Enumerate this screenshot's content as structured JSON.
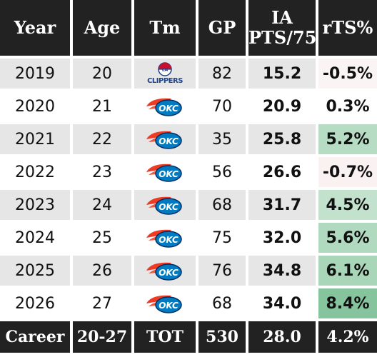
{
  "columns": {
    "year": "Year",
    "age": "Age",
    "team": "Tm",
    "gp": "GP",
    "pts_line1": "IA",
    "pts_line2": "PTS/75",
    "rts": "rTS%"
  },
  "rows": [
    {
      "year": "2019",
      "age": "20",
      "team": "CLIPPERS",
      "team_icon": "clippers-logo-icon",
      "gp": "82",
      "pts": "15.2",
      "rts": "-0.5%",
      "rts_color": "#fbf4f4"
    },
    {
      "year": "2020",
      "age": "21",
      "team": "OKC",
      "team_icon": "okc-thunder-logo-icon",
      "gp": "70",
      "pts": "20.9",
      "rts": "0.3%",
      "rts_color": "#ffffff"
    },
    {
      "year": "2021",
      "age": "22",
      "team": "OKC",
      "team_icon": "okc-thunder-logo-icon",
      "gp": "35",
      "pts": "25.8",
      "rts": "5.2%",
      "rts_color": "#b6dcc4"
    },
    {
      "year": "2022",
      "age": "23",
      "team": "OKC",
      "team_icon": "okc-thunder-logo-icon",
      "gp": "56",
      "pts": "26.6",
      "rts": "-0.7%",
      "rts_color": "#faf1f1"
    },
    {
      "year": "2023",
      "age": "24",
      "team": "OKC",
      "team_icon": "okc-thunder-logo-icon",
      "gp": "68",
      "pts": "31.7",
      "rts": "4.5%",
      "rts_color": "#c2e2ce"
    },
    {
      "year": "2024",
      "age": "25",
      "team": "OKC",
      "team_icon": "okc-thunder-logo-icon",
      "gp": "75",
      "pts": "32.0",
      "rts": "5.6%",
      "rts_color": "#b0d9bf"
    },
    {
      "year": "2025",
      "age": "26",
      "team": "OKC",
      "team_icon": "okc-thunder-logo-icon",
      "gp": "76",
      "pts": "34.8",
      "rts": "6.1%",
      "rts_color": "#a9d6b9"
    },
    {
      "year": "2026",
      "age": "27",
      "team": "OKC",
      "team_icon": "okc-thunder-logo-icon",
      "gp": "68",
      "pts": "34.0",
      "rts": "8.4%",
      "rts_color": "#86c49e"
    }
  ],
  "career": {
    "label": "Career",
    "age": "20-27",
    "team": "TOT",
    "gp": "530",
    "pts": "28.0",
    "rts": "4.2%"
  },
  "colors": {
    "header_bg": "#222222",
    "row_alt_bg": "#e6e6e6",
    "clippers_red": "#c8102e",
    "clippers_blue": "#1d428a",
    "okc_blue": "#007ac1",
    "okc_orange": "#ef3b24",
    "okc_navy": "#002d62"
  }
}
